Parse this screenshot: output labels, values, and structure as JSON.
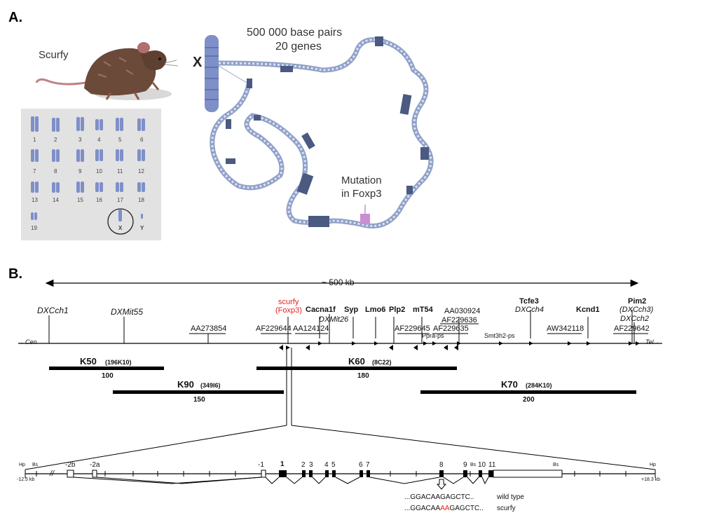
{
  "panelA": {
    "label": "A.",
    "mouse_label": "Scurfy",
    "x_label": "X",
    "header_line1": "500 000 base pairs",
    "header_line2": "20 genes",
    "mutation_line1": "Mutation",
    "mutation_line2": "in Foxp3",
    "karyotype": [
      "1",
      "2",
      "3",
      "4",
      "5",
      "6",
      "7",
      "8",
      "9",
      "10",
      "11",
      "12",
      "13",
      "14",
      "15",
      "16",
      "17",
      "18",
      "19",
      "X",
      "Y"
    ],
    "colors": {
      "chromosome": "#7f8fc8",
      "gene_block": "#4a5a80",
      "mutation": "#c98fd0",
      "panel_bg": "#e2e2e2"
    }
  },
  "panelB": {
    "label": "B.",
    "span_label": "~ 500 kb",
    "markers_top": {
      "DXCch1": "DXCch1",
      "DXMit55": "DXMit55",
      "scurfy": "scurfy",
      "foxp3": "(Foxp3)",
      "Cacna1f": "Cacna1f",
      "DXMit26": "DXMit26",
      "Syp": "Syp",
      "Lmo6": "Lmo6",
      "Plp2": "Plp2",
      "mT54": "mT54",
      "AA030924": "AA030924",
      "AF229636": "AF229636",
      "Tcfe3": "Tcfe3",
      "DXCch4": "DXCch4",
      "Kcnd1": "Kcnd1",
      "Pim2": "Pim2",
      "DXCch3": "(DXCch3)",
      "DXCch2": "DXCch2"
    },
    "markers_mid": {
      "AA273854": "AA273854",
      "AF229644": "AF229644",
      "AA124124": "AA124124",
      "AF229645": "AF229645",
      "AF229635": "AF229635",
      "Ppra_ps": "Ppra-ps",
      "Smt3h2_ps": "Smt3h2-ps",
      "AW342118": "AW342118",
      "AF229642": "AF229642"
    },
    "cen": "←Cen",
    "tel": "Tel→",
    "clones": [
      {
        "name": "K50",
        "id": "(196K10)",
        "size": "100"
      },
      {
        "name": "K90",
        "id": "(349I6)",
        "size": "150"
      },
      {
        "name": "K60",
        "id": "(8C22)",
        "size": "180"
      },
      {
        "name": "K70",
        "id": "(284K10)",
        "size": "200"
      }
    ],
    "gene_map": {
      "hp_left": "Hp",
      "bs_left": "Bs",
      "left_kb": "-12.5 kb",
      "right_kb": "+18.3 kb",
      "hp_right": "Hp",
      "bs_right": "Bs",
      "bs_mid": "Bs",
      "exons": [
        "-2b",
        "-2a",
        "-1",
        "1",
        "2",
        "3",
        "4",
        "5",
        "6",
        "7",
        "8",
        "9",
        "10",
        "11"
      ],
      "seq_wt_prefix": "...GGACAAGAGCTC..",
      "seq_wt_label": "wild type",
      "seq_sf_prefix": "...GGACAA",
      "seq_sf_mut": "AA",
      "seq_sf_suffix": "GAGCTC..",
      "seq_sf_label": "scurfy"
    }
  }
}
